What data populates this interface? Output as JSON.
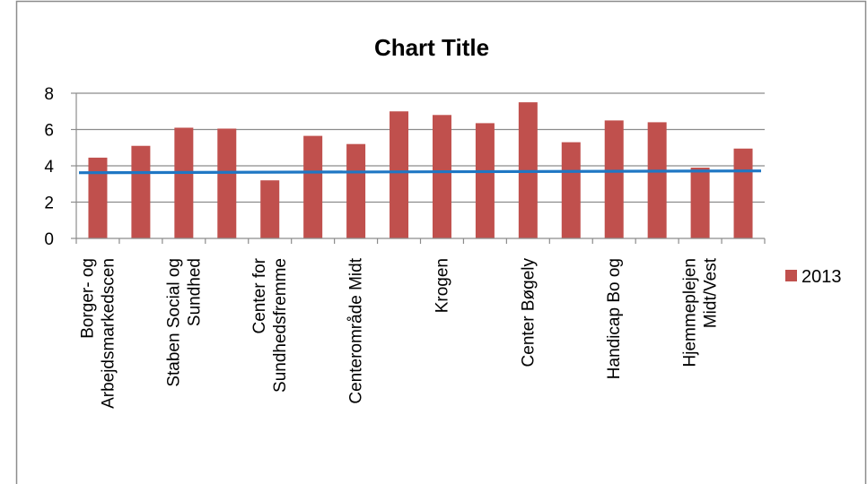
{
  "chart_data": {
    "type": "bar",
    "title": "Chart Title",
    "categories": [
      [
        "Borger- og",
        "Arbejdsmarkedscen"
      ],
      [],
      [
        "Staben Social og",
        "Sundhed"
      ],
      [],
      [
        "Center for",
        "Sundhedsfremme"
      ],
      [],
      [
        "Centerområde Midt"
      ],
      [],
      [
        "Krogen"
      ],
      [],
      [
        "Center Bøgely"
      ],
      [],
      [
        "Handicap Bo og"
      ],
      [],
      [
        "Hjemmeplejen",
        "Midt/Vest"
      ],
      []
    ],
    "series": [
      {
        "name": "2013",
        "color": "#C0504D",
        "values": [
          4.45,
          5.1,
          6.1,
          6.05,
          3.2,
          5.65,
          5.2,
          7.0,
          6.8,
          6.35,
          7.5,
          5.3,
          6.5,
          6.4,
          3.9,
          4.95
        ]
      }
    ],
    "reference_line": {
      "value_start": 3.62,
      "value_end": 3.72,
      "color": "#1F77C4"
    },
    "ylim": [
      0,
      8
    ],
    "yticks": [
      "0",
      "2",
      "4",
      "6",
      "8"
    ],
    "grid": true,
    "legend_position": "right"
  }
}
